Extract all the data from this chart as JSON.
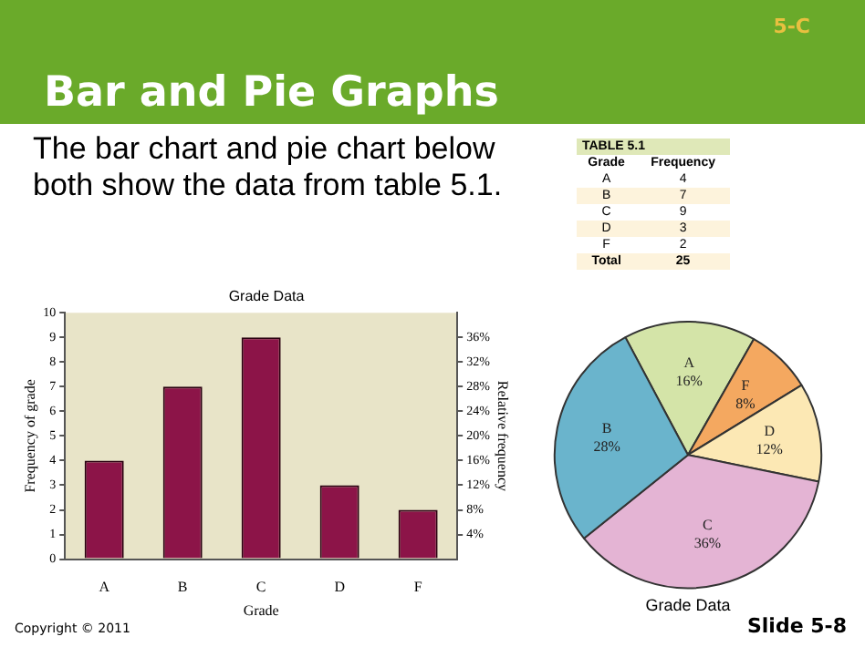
{
  "chart_data": [
    {
      "type": "other",
      "title": "Bar and Pie Graphs",
      "subtitle": "The bar chart and pie chart below both show the data from table 5.1.",
      "annotations": [
        "5-C",
        "Copyright © 2011",
        "Slide 5-8"
      ]
    },
    {
      "type": "other",
      "title": "TABLE 5.1",
      "xlabel": "Grade",
      "ylabel": "Frequency",
      "categories": [
        "A",
        "B",
        "C",
        "D",
        "F"
      ],
      "values": [
        4,
        7,
        9,
        3,
        2
      ],
      "data_labels": true,
      "annotations": [
        "Total",
        "25"
      ]
    },
    {
      "type": "bar",
      "title": "Grade Data",
      "xlabel": "Grade",
      "ylabel": "Frequency of grade",
      "y2label": "Relative frequency",
      "categories": [
        "A",
        "B",
        "C",
        "D",
        "F"
      ],
      "values": [
        4,
        7,
        9,
        3,
        2
      ],
      "color": "#8c1448",
      "ylim": [
        0,
        10
      ],
      "yticks": [
        0,
        1,
        2,
        3,
        4,
        5,
        6,
        7,
        8,
        9,
        10
      ],
      "y2lim": [
        0,
        40
      ],
      "y2ticks": [
        {
          "value": 4,
          "label": "4%"
        },
        {
          "value": 8,
          "label": "8%"
        },
        {
          "value": 12,
          "label": "12%"
        },
        {
          "value": 16,
          "label": "16%"
        },
        {
          "value": 20,
          "label": "20%"
        },
        {
          "value": 24,
          "label": "24%"
        },
        {
          "value": 28,
          "label": "28%"
        },
        {
          "value": 32,
          "label": "32%"
        },
        {
          "value": 36,
          "label": "36%"
        }
      ],
      "grid": false,
      "legend": false
    },
    {
      "type": "pie",
      "title": "Grade Data",
      "categories": [
        "A",
        "F",
        "D",
        "C",
        "B"
      ],
      "values": [
        16,
        8,
        12,
        36,
        28
      ],
      "colors": [
        "#d4e4a8",
        "#f4a860",
        "#fce8b4",
        "#e4b4d4",
        "#6ab4cc"
      ],
      "value_labels": [
        "16%",
        "8%",
        "12%",
        "36%",
        "28%"
      ],
      "legend": false
    }
  ]
}
